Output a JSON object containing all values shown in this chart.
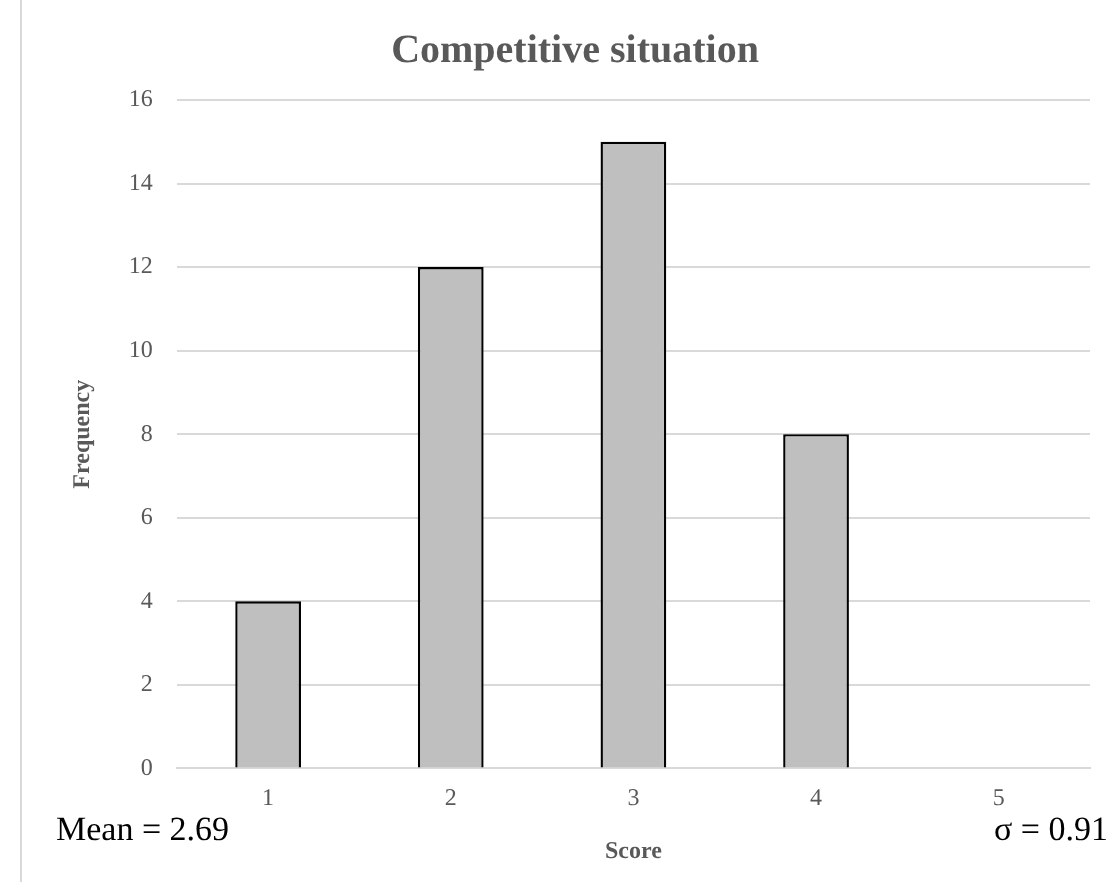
{
  "chart_data": {
    "type": "bar",
    "title": "Competitive situation",
    "xlabel": "Score",
    "ylabel": "Frequency",
    "categories": [
      "1",
      "2",
      "3",
      "4",
      "5"
    ],
    "values": [
      4,
      12,
      15,
      8,
      0
    ],
    "color": "#bfbfbf",
    "ylim": [
      0,
      16
    ],
    "yticks": [
      0,
      2,
      4,
      6,
      8,
      10,
      12,
      14,
      16
    ],
    "grid": "y",
    "legend": false,
    "annotations": [
      "Mean = 2.69",
      "σ = 0.91"
    ]
  }
}
